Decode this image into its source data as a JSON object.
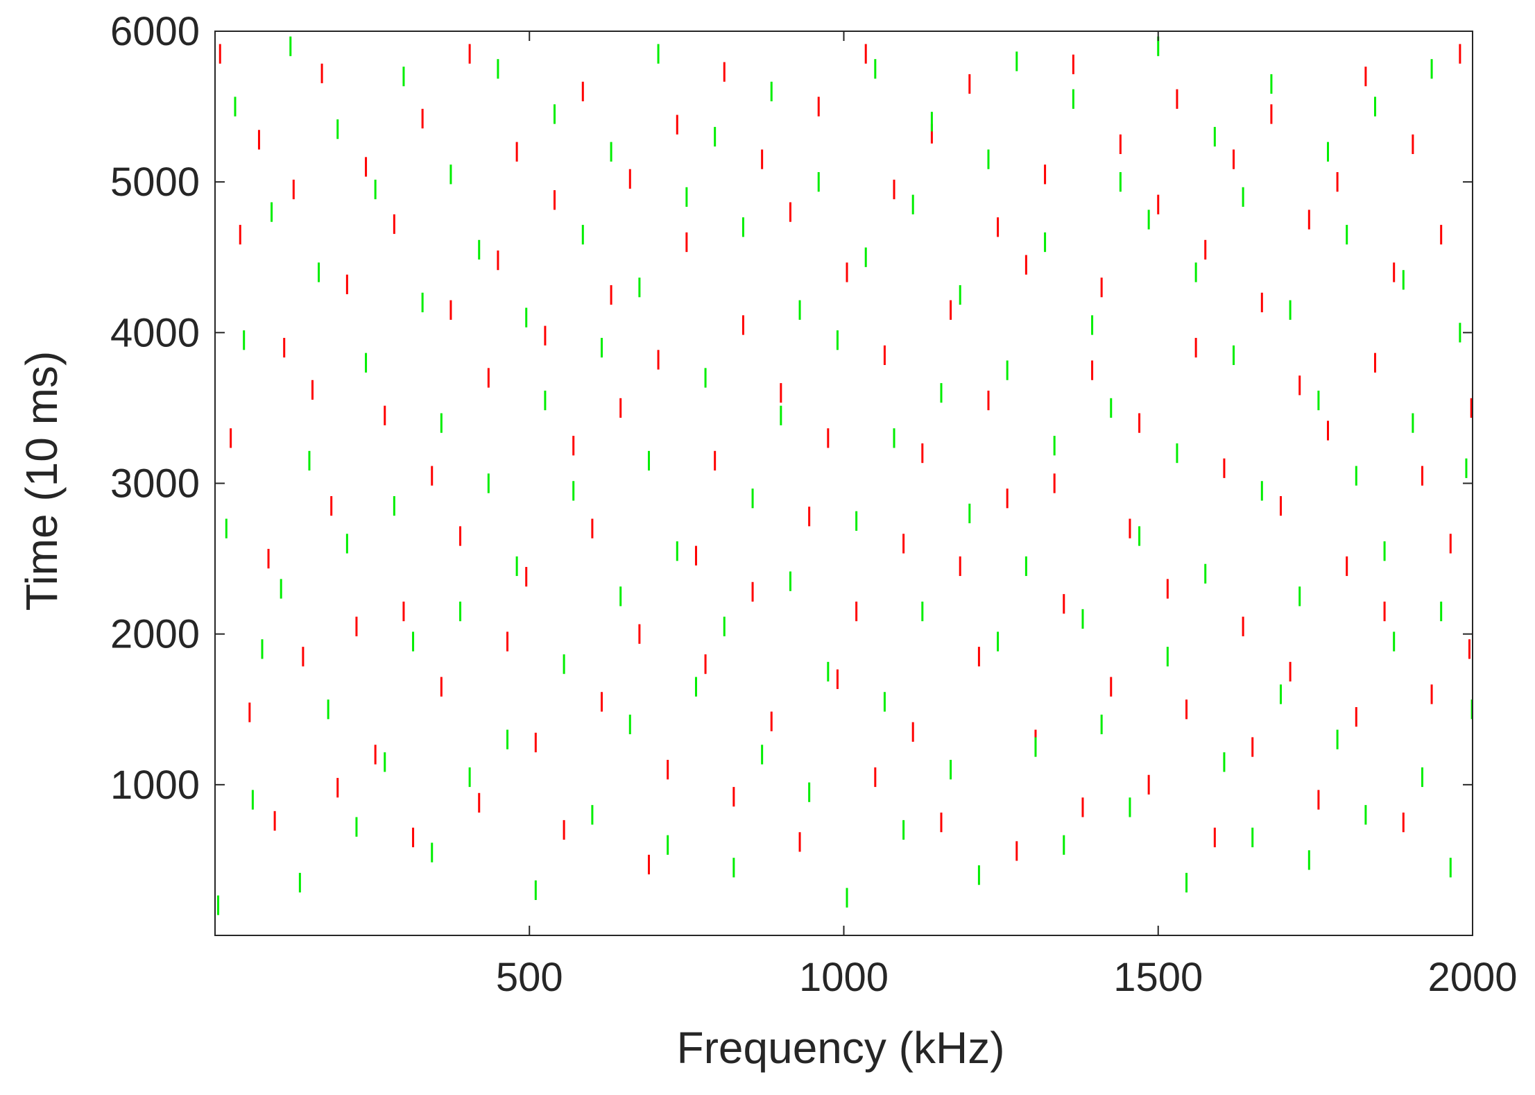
{
  "chart_data": {
    "type": "scatter",
    "xlabel": "Frequency (kHz)",
    "ylabel": "Time (10 ms)",
    "xlim": [
      0,
      2000
    ],
    "ylim": [
      0,
      6000
    ],
    "xticks": [
      500,
      1000,
      1500,
      2000
    ],
    "xtick_labels": [
      "500",
      "1000",
      "1500",
      "2000"
    ],
    "yticks": [
      1000,
      2000,
      3000,
      4000,
      5000,
      6000
    ],
    "ytick_labels": [
      "1000",
      "2000",
      "3000",
      "4000",
      "5000",
      "6000"
    ],
    "grid": false,
    "legend": "none",
    "marker": "vertical line segment",
    "marker_length_y": 130,
    "series": [
      {
        "color": "#ff0000",
        "points": [
          [
            8,
            5850
          ],
          [
            25,
            3300
          ],
          [
            40,
            4650
          ],
          [
            55,
            1480
          ],
          [
            70,
            5280
          ],
          [
            85,
            2500
          ],
          [
            95,
            760
          ],
          [
            110,
            3900
          ],
          [
            125,
            4950
          ],
          [
            140,
            1850
          ],
          [
            155,
            3620
          ],
          [
            170,
            5720
          ],
          [
            185,
            2850
          ],
          [
            195,
            980
          ],
          [
            210,
            4320
          ],
          [
            225,
            2050
          ],
          [
            240,
            5100
          ],
          [
            255,
            1200
          ],
          [
            270,
            3450
          ],
          [
            285,
            4720
          ],
          [
            300,
            2150
          ],
          [
            315,
            650
          ],
          [
            330,
            5420
          ],
          [
            345,
            3050
          ],
          [
            360,
            1650
          ],
          [
            375,
            4150
          ],
          [
            390,
            2650
          ],
          [
            405,
            5850
          ],
          [
            420,
            880
          ],
          [
            435,
            3700
          ],
          [
            450,
            4480
          ],
          [
            465,
            1950
          ],
          [
            480,
            5200
          ],
          [
            495,
            2380
          ],
          [
            510,
            1280
          ],
          [
            525,
            3980
          ],
          [
            540,
            4880
          ],
          [
            555,
            700
          ],
          [
            570,
            3250
          ],
          [
            585,
            5600
          ],
          [
            600,
            2700
          ],
          [
            615,
            1550
          ],
          [
            630,
            4250
          ],
          [
            645,
            3500
          ],
          [
            660,
            5020
          ],
          [
            675,
            2000
          ],
          [
            690,
            470
          ],
          [
            705,
            3820
          ],
          [
            720,
            1100
          ],
          [
            735,
            5380
          ],
          [
            750,
            4600
          ],
          [
            765,
            2520
          ],
          [
            780,
            1800
          ],
          [
            795,
            3150
          ],
          [
            810,
            5730
          ],
          [
            825,
            920
          ],
          [
            840,
            4050
          ],
          [
            855,
            2280
          ],
          [
            870,
            5150
          ],
          [
            885,
            1420
          ],
          [
            900,
            3600
          ],
          [
            915,
            4800
          ],
          [
            930,
            620
          ],
          [
            945,
            2780
          ],
          [
            960,
            5500
          ],
          [
            975,
            3300
          ],
          [
            990,
            1700
          ],
          [
            1005,
            4400
          ],
          [
            1020,
            2150
          ],
          [
            1035,
            5850
          ],
          [
            1050,
            1050
          ],
          [
            1065,
            3850
          ],
          [
            1080,
            4950
          ],
          [
            1095,
            2600
          ],
          [
            1110,
            1350
          ],
          [
            1125,
            3200
          ],
          [
            1140,
            5320
          ],
          [
            1155,
            750
          ],
          [
            1170,
            4150
          ],
          [
            1185,
            2450
          ],
          [
            1200,
            5650
          ],
          [
            1215,
            1850
          ],
          [
            1230,
            3550
          ],
          [
            1245,
            4700
          ],
          [
            1260,
            2900
          ],
          [
            1275,
            560
          ],
          [
            1290,
            4450
          ],
          [
            1305,
            1300
          ],
          [
            1320,
            5050
          ],
          [
            1335,
            3000
          ],
          [
            1350,
            2200
          ],
          [
            1365,
            5780
          ],
          [
            1380,
            850
          ],
          [
            1395,
            3750
          ],
          [
            1410,
            4300
          ],
          [
            1425,
            1650
          ],
          [
            1440,
            5250
          ],
          [
            1455,
            2700
          ],
          [
            1470,
            3400
          ],
          [
            1485,
            1000
          ],
          [
            1500,
            4850
          ],
          [
            1515,
            2300
          ],
          [
            1530,
            5550
          ],
          [
            1545,
            1500
          ],
          [
            1560,
            3900
          ],
          [
            1575,
            4550
          ],
          [
            1590,
            650
          ],
          [
            1605,
            3100
          ],
          [
            1620,
            5150
          ],
          [
            1635,
            2050
          ],
          [
            1650,
            1250
          ],
          [
            1665,
            4200
          ],
          [
            1680,
            5450
          ],
          [
            1695,
            2850
          ],
          [
            1710,
            1750
          ],
          [
            1725,
            3650
          ],
          [
            1740,
            4750
          ],
          [
            1755,
            900
          ],
          [
            1770,
            3350
          ],
          [
            1785,
            5000
          ],
          [
            1800,
            2450
          ],
          [
            1815,
            1450
          ],
          [
            1830,
            5700
          ],
          [
            1845,
            3800
          ],
          [
            1860,
            2150
          ],
          [
            1875,
            4400
          ],
          [
            1890,
            750
          ],
          [
            1905,
            5250
          ],
          [
            1920,
            3050
          ],
          [
            1935,
            1600
          ],
          [
            1950,
            4650
          ],
          [
            1965,
            2600
          ],
          [
            1980,
            5850
          ],
          [
            1995,
            1900
          ],
          [
            1998,
            3500
          ]
        ]
      },
      {
        "color": "#00ee00",
        "points": [
          [
            5,
            200
          ],
          [
            18,
            2700
          ],
          [
            32,
            5500
          ],
          [
            46,
            3950
          ],
          [
            60,
            900
          ],
          [
            75,
            1900
          ],
          [
            90,
            4800
          ],
          [
            105,
            2300
          ],
          [
            120,
            5900
          ],
          [
            135,
            350
          ],
          [
            150,
            3150
          ],
          [
            165,
            4400
          ],
          [
            180,
            1500
          ],
          [
            195,
            5350
          ],
          [
            210,
            2600
          ],
          [
            225,
            720
          ],
          [
            240,
            3800
          ],
          [
            255,
            4950
          ],
          [
            270,
            1150
          ],
          [
            285,
            2850
          ],
          [
            300,
            5700
          ],
          [
            315,
            1950
          ],
          [
            330,
            4200
          ],
          [
            345,
            550
          ],
          [
            360,
            3400
          ],
          [
            375,
            5050
          ],
          [
            390,
            2150
          ],
          [
            405,
            1050
          ],
          [
            420,
            4550
          ],
          [
            435,
            3000
          ],
          [
            450,
            5750
          ],
          [
            465,
            1300
          ],
          [
            480,
            2450
          ],
          [
            495,
            4100
          ],
          [
            510,
            300
          ],
          [
            525,
            3550
          ],
          [
            540,
            5450
          ],
          [
            555,
            1800
          ],
          [
            570,
            2950
          ],
          [
            585,
            4650
          ],
          [
            600,
            800
          ],
          [
            615,
            3900
          ],
          [
            630,
            5200
          ],
          [
            645,
            2250
          ],
          [
            660,
            1400
          ],
          [
            675,
            4300
          ],
          [
            690,
            3150
          ],
          [
            705,
            5850
          ],
          [
            720,
            600
          ],
          [
            735,
            2550
          ],
          [
            750,
            4900
          ],
          [
            765,
            1650
          ],
          [
            780,
            3700
          ],
          [
            795,
            5300
          ],
          [
            810,
            2050
          ],
          [
            825,
            450
          ],
          [
            840,
            4700
          ],
          [
            855,
            2900
          ],
          [
            870,
            1200
          ],
          [
            885,
            5600
          ],
          [
            900,
            3450
          ],
          [
            915,
            2350
          ],
          [
            930,
            4150
          ],
          [
            945,
            950
          ],
          [
            960,
            5000
          ],
          [
            975,
            1750
          ],
          [
            990,
            3950
          ],
          [
            1005,
            250
          ],
          [
            1020,
            2750
          ],
          [
            1035,
            4500
          ],
          [
            1050,
            5750
          ],
          [
            1065,
            1550
          ],
          [
            1080,
            3300
          ],
          [
            1095,
            700
          ],
          [
            1110,
            4850
          ],
          [
            1125,
            2150
          ],
          [
            1140,
            5400
          ],
          [
            1155,
            3600
          ],
          [
            1170,
            1100
          ],
          [
            1185,
            4250
          ],
          [
            1200,
            2800
          ],
          [
            1215,
            400
          ],
          [
            1230,
            5150
          ],
          [
            1245,
            1950
          ],
          [
            1260,
            3750
          ],
          [
            1275,
            5800
          ],
          [
            1290,
            2450
          ],
          [
            1305,
            1250
          ],
          [
            1320,
            4600
          ],
          [
            1335,
            3250
          ],
          [
            1350,
            600
          ],
          [
            1365,
            5550
          ],
          [
            1380,
            2100
          ],
          [
            1395,
            4050
          ],
          [
            1410,
            1400
          ],
          [
            1425,
            3500
          ],
          [
            1440,
            5000
          ],
          [
            1455,
            850
          ],
          [
            1470,
            2650
          ],
          [
            1485,
            4750
          ],
          [
            1500,
            5900
          ],
          [
            1515,
            1850
          ],
          [
            1530,
            3200
          ],
          [
            1545,
            350
          ],
          [
            1560,
            4400
          ],
          [
            1575,
            2400
          ],
          [
            1590,
            5300
          ],
          [
            1605,
            1150
          ],
          [
            1620,
            3850
          ],
          [
            1635,
            4900
          ],
          [
            1650,
            650
          ],
          [
            1665,
            2950
          ],
          [
            1680,
            5650
          ],
          [
            1695,
            1600
          ],
          [
            1710,
            4150
          ],
          [
            1725,
            2250
          ],
          [
            1740,
            500
          ],
          [
            1755,
            3550
          ],
          [
            1770,
            5200
          ],
          [
            1785,
            1300
          ],
          [
            1800,
            4650
          ],
          [
            1815,
            3050
          ],
          [
            1830,
            800
          ],
          [
            1845,
            5500
          ],
          [
            1860,
            2550
          ],
          [
            1875,
            1950
          ],
          [
            1890,
            4350
          ],
          [
            1905,
            3400
          ],
          [
            1920,
            1050
          ],
          [
            1935,
            5750
          ],
          [
            1950,
            2150
          ],
          [
            1965,
            450
          ],
          [
            1980,
            4000
          ],
          [
            1990,
            3100
          ],
          [
            1999,
            1500
          ]
        ]
      }
    ]
  }
}
